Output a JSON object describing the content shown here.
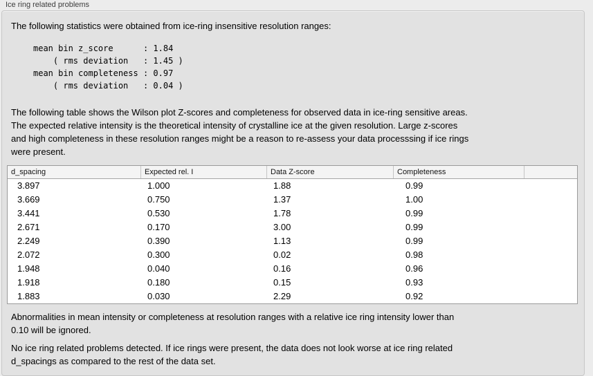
{
  "panel": {
    "title": "Ice ring related problems",
    "intro": "The following statistics were obtained from ice-ring insensitive resolution ranges:",
    "stats_lines": [
      "mean bin z_score      : 1.84",
      "    ( rms deviation   : 1.45 )",
      "mean bin completeness : 0.97",
      "    ( rms deviation   : 0.04 )"
    ],
    "description_lines": [
      "The following table shows the Wilson plot Z-scores and completeness for observed data in ice-ring sensitive areas.",
      "The expected relative intensity is the theoretical intensity of crystalline ice at the given resolution. Large z-scores",
      "and high completeness in these resolution ranges might be a reason to re-assess your data processsing if ice rings",
      "were present."
    ],
    "table": {
      "columns": [
        "d_spacing",
        "Expected rel. I",
        "Data Z-score",
        "Completeness"
      ],
      "rows": [
        [
          "3.897",
          "1.000",
          "1.88",
          "0.99"
        ],
        [
          "3.669",
          "0.750",
          "1.37",
          "1.00"
        ],
        [
          "3.441",
          "0.530",
          "1.78",
          "0.99"
        ],
        [
          "2.671",
          "0.170",
          "3.00",
          "0.99"
        ],
        [
          "2.249",
          "0.390",
          "1.13",
          "0.99"
        ],
        [
          "2.072",
          "0.300",
          "0.02",
          "0.98"
        ],
        [
          "1.948",
          "0.040",
          "0.16",
          "0.96"
        ],
        [
          "1.918",
          "0.180",
          "0.15",
          "0.93"
        ],
        [
          "1.883",
          "0.030",
          "2.29",
          "0.92"
        ]
      ]
    },
    "note_lines": [
      "Abnormalities in mean intensity or completeness at resolution ranges with a relative ice ring intensity lower than",
      "0.10 will be ignored."
    ],
    "conclusion_lines": [
      "No ice ring related problems detected. If ice rings were present, the data does not look worse at ice ring related",
      "d_spacings as compared to the rest of the data set."
    ],
    "colors": {
      "page_background": "#ececec",
      "panel_background": "#e2e2e2",
      "panel_border": "#c6c6c6",
      "table_background": "#ffffff",
      "table_border": "#9a9a9a",
      "table_header_background": "#f4f4f4",
      "text": "#000000",
      "label_text": "#3c3c3c"
    }
  }
}
